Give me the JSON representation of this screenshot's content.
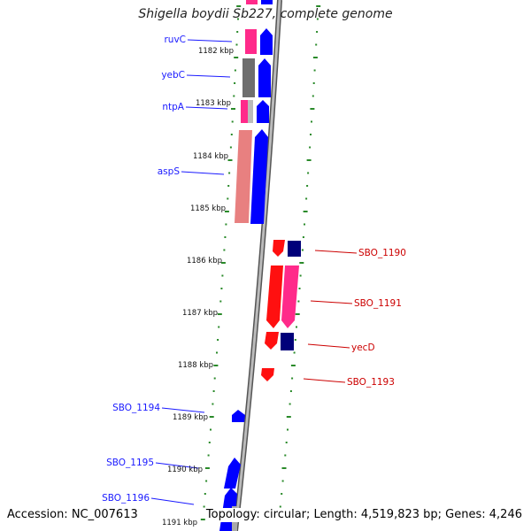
{
  "title": "Shigella boydii Sb227, complete genome",
  "footer": {
    "accession": "Accession: NC_007613",
    "topology": "Topology: circular; Length: 4,519,823 bp; Genes: 4,246"
  },
  "colors": {
    "forward_label": "#1a1aff",
    "reverse_label": "#cc0000",
    "backbone": "#888888",
    "tick": "#2a8a2a",
    "blue": "#0000ff",
    "navy": "#00007a",
    "magenta": "#ff2a8a",
    "gray": "#6e6e6e",
    "salmon": "#e88080",
    "red": "#ff1010"
  },
  "scale_labels": [
    "1182 kbp",
    "1183 kbp",
    "1184 kbp",
    "1185 kbp",
    "1186 kbp",
    "1187 kbp",
    "1188 kbp",
    "1189 kbp",
    "1190 kbp",
    "1191 kbp"
  ],
  "gene_labels": [
    {
      "text": "ruvC",
      "side": "left"
    },
    {
      "text": "yebC",
      "side": "left"
    },
    {
      "text": "ntpA",
      "side": "left"
    },
    {
      "text": "aspS",
      "side": "left"
    },
    {
      "text": "SBO_1190",
      "side": "right"
    },
    {
      "text": "SBO_1191",
      "side": "right"
    },
    {
      "text": "yecD",
      "side": "right"
    },
    {
      "text": "SBO_1193",
      "side": "right"
    },
    {
      "text": "SBO_1194",
      "side": "left"
    },
    {
      "text": "SBO_1195",
      "side": "left"
    },
    {
      "text": "SBO_1196",
      "side": "left"
    }
  ]
}
